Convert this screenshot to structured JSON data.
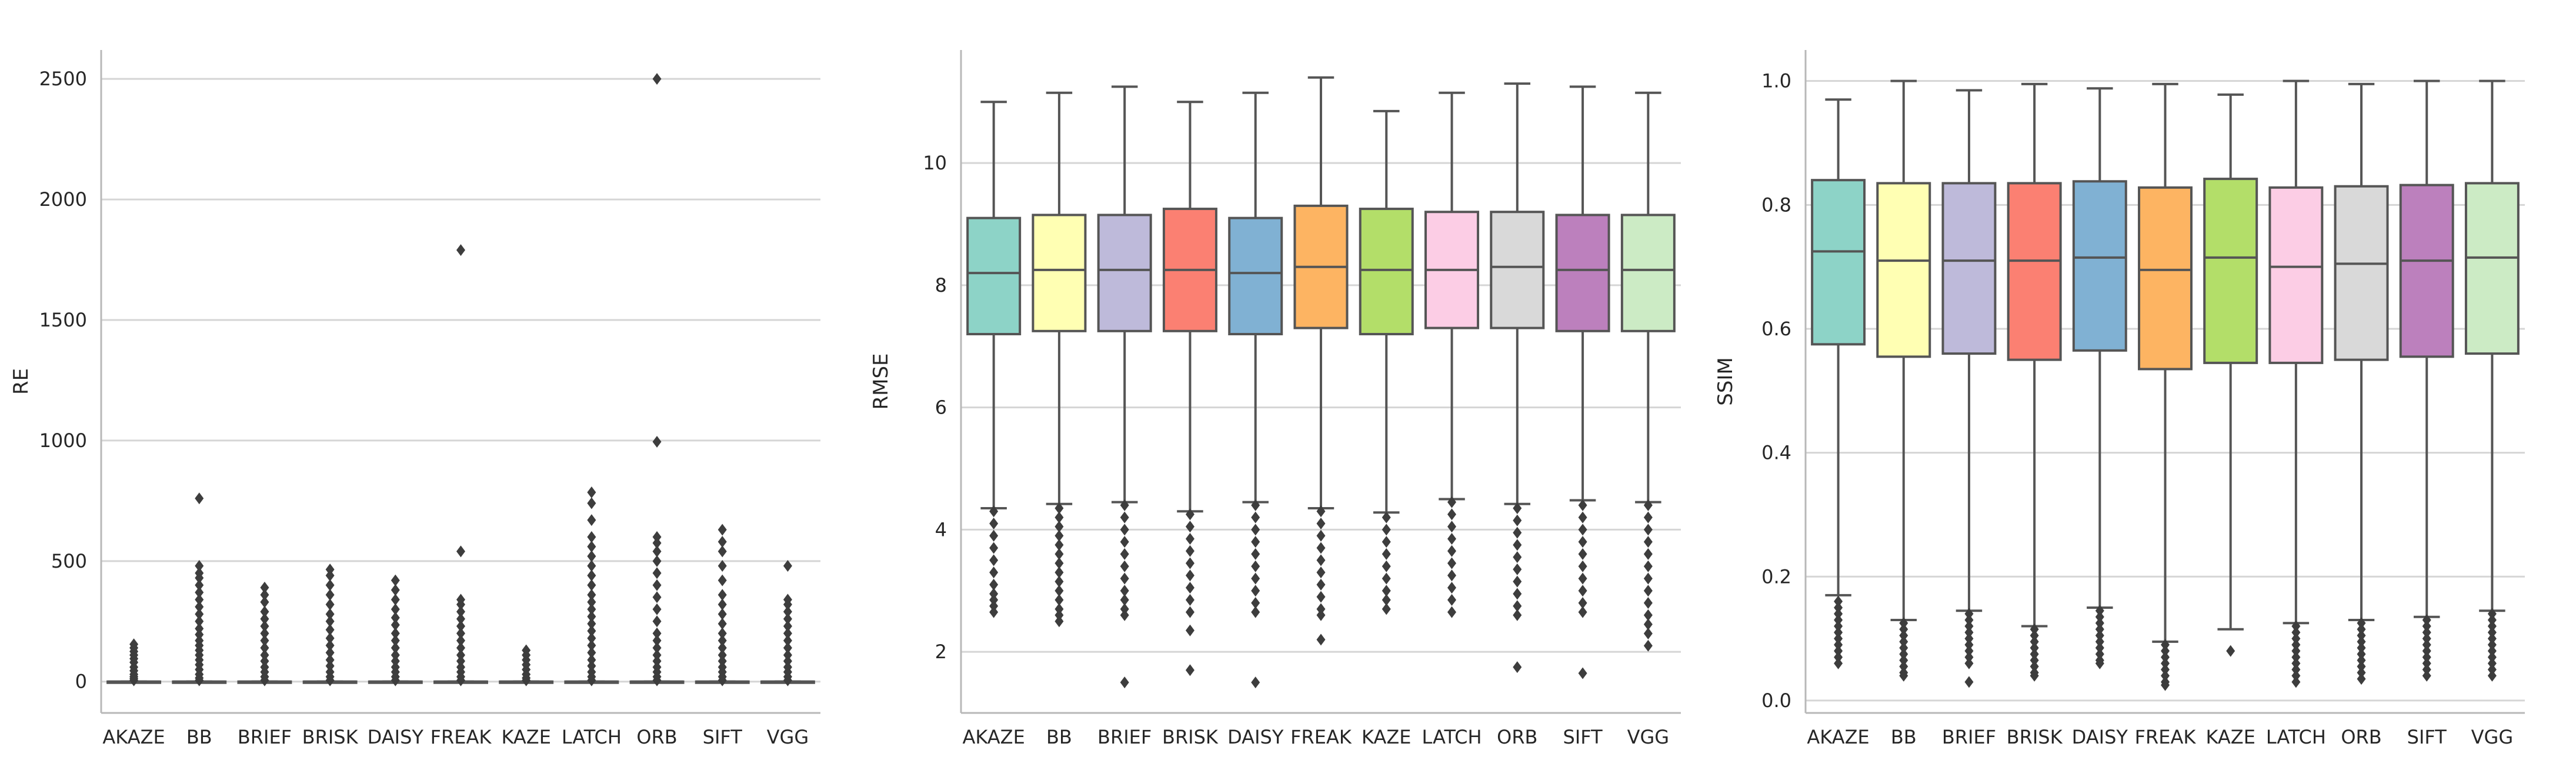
{
  "chart_data": [
    {
      "type": "box",
      "xlabel": "",
      "ylabel": "RE",
      "ylim": [
        -130,
        2620
      ],
      "yticks": [
        0,
        500,
        1000,
        1500,
        2000,
        2500
      ],
      "grid": "horizontal",
      "categories": [
        "AKAZE",
        "BB",
        "BRIEF",
        "BRISK",
        "DAISY",
        "FREAK",
        "KAZE",
        "LATCH",
        "ORB",
        "SIFT",
        "VGG"
      ],
      "colors": [
        "#d9d9d9",
        "#d9d9d9",
        "#d9d9d9",
        "#d9d9d9",
        "#d9d9d9",
        "#d9d9d9",
        "#d9d9d9",
        "#d9d9d9",
        "#d9d9d9",
        "#d9d9d9",
        "#d9d9d9"
      ],
      "boxes": [
        {
          "q1": 0,
          "median": 0,
          "q3": 0,
          "whislo": 0,
          "whishi": 0,
          "outliers": [
            5,
            12,
            20,
            30,
            45,
            60,
            80,
            95,
            110,
            125,
            140,
            155
          ]
        },
        {
          "q1": 0,
          "median": 0,
          "q3": 0,
          "whislo": 0,
          "whishi": 0,
          "outliers": [
            5,
            15,
            30,
            50,
            70,
            90,
            110,
            130,
            150,
            170,
            195,
            220,
            250,
            280,
            310,
            340,
            370,
            400,
            430,
            450,
            480,
            760
          ]
        },
        {
          "q1": 0,
          "median": 0,
          "q3": 0,
          "whislo": 0,
          "whishi": 0,
          "outliers": [
            5,
            20,
            40,
            60,
            85,
            110,
            140,
            170,
            200,
            230,
            260,
            290,
            330,
            360,
            390
          ]
        },
        {
          "q1": 0,
          "median": 0,
          "q3": 0,
          "whislo": 0,
          "whishi": 0,
          "outliers": [
            5,
            20,
            40,
            65,
            90,
            120,
            150,
            180,
            215,
            250,
            280,
            320,
            360,
            400,
            440,
            465
          ]
        },
        {
          "q1": 0,
          "median": 0,
          "q3": 0,
          "whislo": 0,
          "whishi": 0,
          "outliers": [
            5,
            20,
            40,
            60,
            85,
            110,
            140,
            170,
            200,
            235,
            265,
            300,
            340,
            380,
            420
          ]
        },
        {
          "q1": 0,
          "median": 0,
          "q3": 0,
          "whislo": 0,
          "whishi": 0,
          "outliers": [
            5,
            20,
            40,
            60,
            85,
            110,
            140,
            170,
            200,
            230,
            260,
            290,
            320,
            340,
            540,
            1790
          ]
        },
        {
          "q1": 0,
          "median": 0,
          "q3": 0,
          "whislo": 0,
          "whishi": 0,
          "outliers": [
            5,
            15,
            30,
            50,
            70,
            90,
            110,
            130
          ]
        },
        {
          "q1": 0,
          "median": 0,
          "q3": 0,
          "whislo": 0,
          "whishi": 0,
          "outliers": [
            5,
            20,
            40,
            65,
            90,
            120,
            150,
            180,
            210,
            240,
            270,
            300,
            330,
            360,
            400,
            440,
            480,
            520,
            560,
            600,
            670,
            740,
            785
          ]
        },
        {
          "q1": 0,
          "median": 0,
          "q3": 0,
          "whislo": 0,
          "whishi": 0,
          "outliers": [
            5,
            20,
            40,
            60,
            85,
            110,
            140,
            170,
            200,
            250,
            300,
            350,
            400,
            450,
            500,
            540,
            575,
            600,
            995,
            2500
          ]
        },
        {
          "q1": 0,
          "median": 0,
          "q3": 0,
          "whislo": 0,
          "whishi": 0,
          "outliers": [
            5,
            20,
            40,
            60,
            85,
            110,
            140,
            170,
            200,
            240,
            280,
            320,
            360,
            420,
            480,
            540,
            580,
            630
          ]
        },
        {
          "q1": 0,
          "median": 0,
          "q3": 0,
          "whislo": 0,
          "whishi": 0,
          "outliers": [
            5,
            20,
            40,
            60,
            85,
            110,
            140,
            170,
            200,
            230,
            260,
            290,
            320,
            340,
            480
          ]
        }
      ]
    },
    {
      "type": "box",
      "xlabel": "",
      "ylabel": "RMSE",
      "ylim": [
        1.0,
        11.85
      ],
      "yticks": [
        2,
        4,
        6,
        8,
        10
      ],
      "grid": "horizontal",
      "categories": [
        "AKAZE",
        "BB",
        "BRIEF",
        "BRISK",
        "DAISY",
        "FREAK",
        "KAZE",
        "LATCH",
        "ORB",
        "SIFT",
        "VGG"
      ],
      "colors": [
        "#8dd3c7",
        "#ffffb3",
        "#bebada",
        "#fb8072",
        "#80b1d3",
        "#fdb462",
        "#b3de69",
        "#fccde5",
        "#d9d9d9",
        "#bc80bd",
        "#ccebc5"
      ],
      "boxes": [
        {
          "q1": 7.2,
          "median": 8.2,
          "q3": 9.1,
          "whislo": 4.35,
          "whishi": 11.0,
          "outliers": [
            4.3,
            4.1,
            3.9,
            3.7,
            3.5,
            3.3,
            3.1,
            2.95,
            2.85,
            2.75,
            2.65
          ]
        },
        {
          "q1": 7.25,
          "median": 8.25,
          "q3": 9.15,
          "whislo": 4.42,
          "whishi": 11.15,
          "outliers": [
            4.35,
            4.2,
            4.05,
            3.9,
            3.75,
            3.6,
            3.45,
            3.3,
            3.15,
            3.0,
            2.85,
            2.7,
            2.6,
            2.5
          ]
        },
        {
          "q1": 7.25,
          "median": 8.25,
          "q3": 9.15,
          "whislo": 4.45,
          "whishi": 11.25,
          "outliers": [
            4.4,
            4.2,
            4.0,
            3.8,
            3.6,
            3.4,
            3.2,
            3.0,
            2.85,
            2.7,
            2.6,
            1.5
          ]
        },
        {
          "q1": 7.25,
          "median": 8.25,
          "q3": 9.25,
          "whislo": 4.3,
          "whishi": 11.0,
          "outliers": [
            4.25,
            4.05,
            3.85,
            3.65,
            3.45,
            3.25,
            3.05,
            2.85,
            2.65,
            2.35,
            1.7
          ]
        },
        {
          "q1": 7.2,
          "median": 8.2,
          "q3": 9.1,
          "whislo": 4.45,
          "whishi": 11.15,
          "outliers": [
            4.4,
            4.2,
            4.0,
            3.8,
            3.6,
            3.4,
            3.2,
            3.0,
            2.8,
            2.65,
            1.5
          ]
        },
        {
          "q1": 7.3,
          "median": 8.3,
          "q3": 9.3,
          "whislo": 4.35,
          "whishi": 11.4,
          "outliers": [
            4.3,
            4.1,
            3.9,
            3.7,
            3.5,
            3.3,
            3.1,
            2.9,
            2.7,
            2.6,
            2.2
          ]
        },
        {
          "q1": 7.2,
          "median": 8.25,
          "q3": 9.25,
          "whislo": 4.28,
          "whishi": 10.85,
          "outliers": [
            4.2,
            4.0,
            3.8,
            3.6,
            3.4,
            3.2,
            3.0,
            2.85,
            2.7
          ]
        },
        {
          "q1": 7.3,
          "median": 8.25,
          "q3": 9.2,
          "whislo": 4.5,
          "whishi": 11.15,
          "outliers": [
            4.45,
            4.25,
            4.05,
            3.85,
            3.65,
            3.45,
            3.25,
            3.05,
            2.85,
            2.65
          ]
        },
        {
          "q1": 7.3,
          "median": 8.3,
          "q3": 9.2,
          "whislo": 4.42,
          "whishi": 11.3,
          "outliers": [
            4.35,
            4.15,
            3.95,
            3.75,
            3.55,
            3.35,
            3.15,
            2.95,
            2.75,
            2.6,
            1.75
          ]
        },
        {
          "q1": 7.25,
          "median": 8.25,
          "q3": 9.15,
          "whislo": 4.48,
          "whishi": 11.25,
          "outliers": [
            4.4,
            4.2,
            4.0,
            3.8,
            3.6,
            3.4,
            3.2,
            3.0,
            2.8,
            2.65,
            1.65
          ]
        },
        {
          "q1": 7.25,
          "median": 8.25,
          "q3": 9.15,
          "whislo": 4.45,
          "whishi": 11.15,
          "outliers": [
            4.4,
            4.2,
            4.0,
            3.8,
            3.6,
            3.4,
            3.2,
            3.0,
            2.8,
            2.6,
            2.45,
            2.3,
            2.1
          ]
        }
      ]
    },
    {
      "type": "box",
      "xlabel": "",
      "ylabel": "SSIM",
      "ylim": [
        -0.02,
        1.05
      ],
      "yticks": [
        0.0,
        0.2,
        0.4,
        0.6,
        0.8,
        1.0
      ],
      "grid": "horizontal",
      "categories": [
        "AKAZE",
        "BB",
        "BRIEF",
        "BRISK",
        "DAISY",
        "FREAK",
        "KAZE",
        "LATCH",
        "ORB",
        "SIFT",
        "VGG"
      ],
      "colors": [
        "#8dd3c7",
        "#ffffb3",
        "#bebada",
        "#fb8072",
        "#80b1d3",
        "#fdb462",
        "#b3de69",
        "#fccde5",
        "#d9d9d9",
        "#bc80bd",
        "#ccebc5"
      ],
      "boxes": [
        {
          "q1": 0.575,
          "median": 0.725,
          "q3": 0.84,
          "whislo": 0.17,
          "whishi": 0.97,
          "outliers": [
            0.16,
            0.15,
            0.14,
            0.13,
            0.12,
            0.11,
            0.1,
            0.09,
            0.08,
            0.07,
            0.06
          ]
        },
        {
          "q1": 0.555,
          "median": 0.71,
          "q3": 0.835,
          "whislo": 0.13,
          "whishi": 1.0,
          "outliers": [
            0.125,
            0.115,
            0.105,
            0.095,
            0.085,
            0.075,
            0.065,
            0.055,
            0.045,
            0.04
          ]
        },
        {
          "q1": 0.56,
          "median": 0.71,
          "q3": 0.835,
          "whislo": 0.145,
          "whishi": 0.985,
          "outliers": [
            0.14,
            0.13,
            0.12,
            0.11,
            0.1,
            0.09,
            0.08,
            0.07,
            0.06,
            0.03
          ]
        },
        {
          "q1": 0.55,
          "median": 0.71,
          "q3": 0.835,
          "whislo": 0.12,
          "whishi": 0.995,
          "outliers": [
            0.115,
            0.105,
            0.095,
            0.085,
            0.075,
            0.065,
            0.055,
            0.045,
            0.04
          ]
        },
        {
          "q1": 0.565,
          "median": 0.715,
          "q3": 0.838,
          "whislo": 0.15,
          "whishi": 0.988,
          "outliers": [
            0.145,
            0.135,
            0.125,
            0.115,
            0.105,
            0.095,
            0.085,
            0.075,
            0.065,
            0.06
          ]
        },
        {
          "q1": 0.535,
          "median": 0.695,
          "q3": 0.828,
          "whislo": 0.095,
          "whishi": 0.995,
          "outliers": [
            0.09,
            0.08,
            0.07,
            0.06,
            0.05,
            0.04,
            0.03,
            0.025
          ]
        },
        {
          "q1": 0.545,
          "median": 0.715,
          "q3": 0.842,
          "whislo": 0.115,
          "whishi": 0.978,
          "outliers": [
            0.08
          ]
        },
        {
          "q1": 0.545,
          "median": 0.7,
          "q3": 0.828,
          "whislo": 0.125,
          "whishi": 1.0,
          "outliers": [
            0.12,
            0.11,
            0.1,
            0.09,
            0.08,
            0.07,
            0.06,
            0.05,
            0.04,
            0.03
          ]
        },
        {
          "q1": 0.55,
          "median": 0.705,
          "q3": 0.83,
          "whislo": 0.13,
          "whishi": 0.995,
          "outliers": [
            0.125,
            0.115,
            0.105,
            0.095,
            0.085,
            0.075,
            0.065,
            0.055,
            0.045,
            0.035
          ]
        },
        {
          "q1": 0.555,
          "median": 0.71,
          "q3": 0.832,
          "whislo": 0.135,
          "whishi": 1.0,
          "outliers": [
            0.13,
            0.12,
            0.11,
            0.1,
            0.09,
            0.08,
            0.07,
            0.06,
            0.05,
            0.04
          ]
        },
        {
          "q1": 0.56,
          "median": 0.715,
          "q3": 0.835,
          "whislo": 0.145,
          "whishi": 1.0,
          "outliers": [
            0.14,
            0.13,
            0.12,
            0.11,
            0.1,
            0.09,
            0.08,
            0.07,
            0.06,
            0.05,
            0.04
          ]
        }
      ]
    }
  ]
}
